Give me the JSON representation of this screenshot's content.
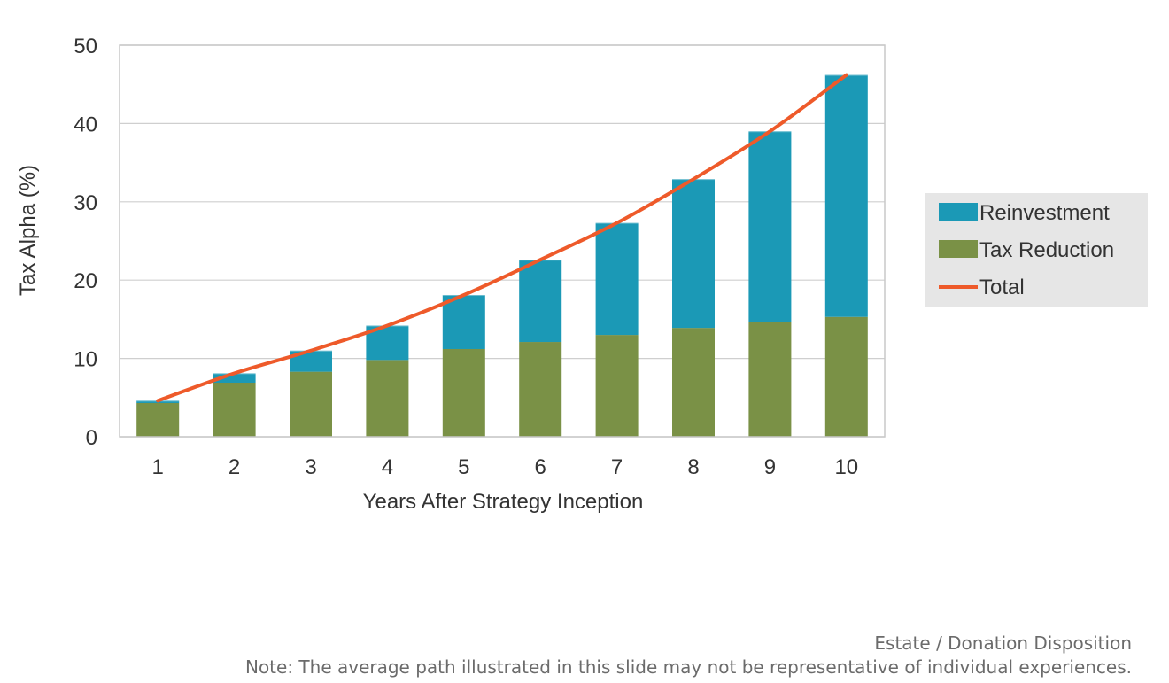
{
  "chart_data": {
    "type": "bar",
    "stacked": true,
    "categories": [
      "1",
      "2",
      "3",
      "4",
      "5",
      "6",
      "7",
      "8",
      "9",
      "10"
    ],
    "series": [
      {
        "name": "Tax Reduction",
        "kind": "bar",
        "color": "#7a9146",
        "values": [
          4.3,
          6.9,
          8.3,
          9.8,
          11.2,
          12.1,
          13.0,
          13.9,
          14.7,
          15.3
        ]
      },
      {
        "name": "Reinvestment",
        "kind": "bar",
        "color": "#1b99b6",
        "values": [
          0.3,
          1.2,
          2.7,
          4.4,
          6.9,
          10.5,
          14.3,
          19.0,
          24.3,
          30.9
        ]
      },
      {
        "name": "Total",
        "kind": "line",
        "color": "#ee5a2a",
        "values": [
          4.6,
          8.1,
          11.0,
          14.2,
          18.1,
          22.6,
          27.3,
          32.9,
          39.0,
          46.2
        ]
      }
    ],
    "xlabel": "Years After Strategy Inception",
    "ylabel": "Tax Alpha (%)",
    "ylim": [
      0,
      50
    ],
    "yticks": [
      "0",
      "10",
      "20",
      "30",
      "40",
      "50"
    ],
    "grid": true,
    "legend": {
      "placement": "right",
      "entries": [
        "Reinvestment",
        "Tax Reduction",
        "Total"
      ],
      "background": "#e6e6e6"
    }
  },
  "footer": {
    "line1": "Estate / Donation Disposition",
    "line2": "Note: The average path illustrated  in this slide may not be representative  of individual  experiences."
  }
}
